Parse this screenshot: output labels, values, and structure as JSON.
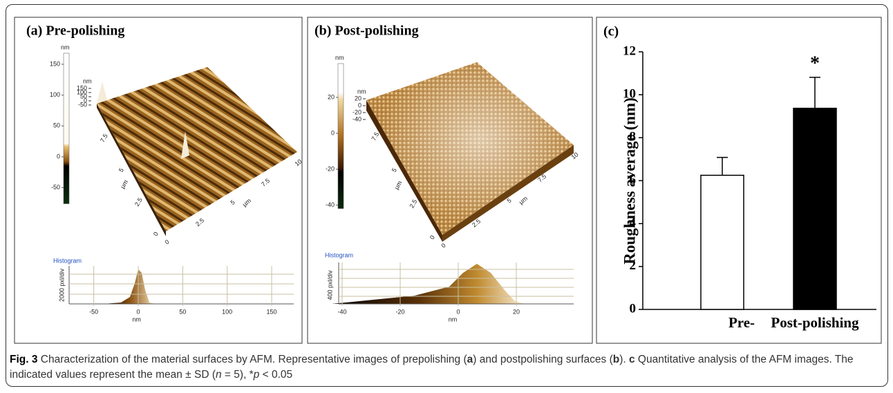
{
  "panels": [
    {
      "title": "(a) Pre-polishing",
      "colorbar": {
        "unit": "nm",
        "ticks": [
          150,
          100,
          50,
          0,
          -50
        ]
      },
      "surface": {
        "z_unit": "nm",
        "z_ticks": [
          150,
          100,
          50,
          0,
          -50
        ],
        "y_unit": "µm",
        "y_ticks": [
          0,
          2.5,
          5,
          7.5
        ],
        "x_unit": "µm",
        "x_ticks": [
          0,
          2.5,
          5,
          7.5,
          10
        ]
      },
      "histogram": {
        "title": "Histogram",
        "y_label": "2000 pxl/div",
        "x_label": "nm",
        "x_ticks": [
          -50,
          0,
          50,
          100,
          150
        ]
      }
    },
    {
      "title": "(b) Post-polishing",
      "colorbar": {
        "unit": "nm",
        "ticks": [
          20,
          0,
          -20,
          -40
        ]
      },
      "surface": {
        "z_unit": "nm",
        "z_ticks": [
          20,
          0,
          -20,
          -40
        ],
        "y_unit": "µm",
        "y_ticks": [
          0,
          2.5,
          5,
          7.5
        ],
        "x_unit": "µm",
        "x_ticks": [
          0,
          2.5,
          5,
          7.5,
          10
        ]
      },
      "histogram": {
        "title": "Histogram",
        "y_label": "400 pxl/div",
        "x_label": "nm",
        "x_ticks": [
          -40,
          -20,
          0,
          20
        ]
      }
    }
  ],
  "chart_data": {
    "type": "bar",
    "title": "(c)",
    "ylabel": "Roughness average (nm)",
    "categories": [
      "Pre-",
      "Post-polishing"
    ],
    "values": [
      6.25,
      9.37
    ],
    "errors": [
      0.83,
      1.44
    ],
    "colors": [
      "#ffffff",
      "#000000"
    ],
    "ylim": [
      0,
      12
    ],
    "yticks": [
      0,
      2,
      4,
      6,
      8,
      10,
      12
    ],
    "annotations": [
      {
        "text": "*",
        "category": "Post-polishing"
      }
    ]
  },
  "caption": {
    "label": "Fig. 3",
    "parts": [
      "Characterization of the material surfaces by AFM. Representative images of prepolishing (",
      "a",
      ") and postpolishing surfaces (",
      "b",
      "). ",
      "c",
      " Quantitative analysis of the AFM images. The indicated values represent the mean ± SD (",
      "n",
      " = 5), *",
      "p",
      " < 0.05"
    ]
  }
}
